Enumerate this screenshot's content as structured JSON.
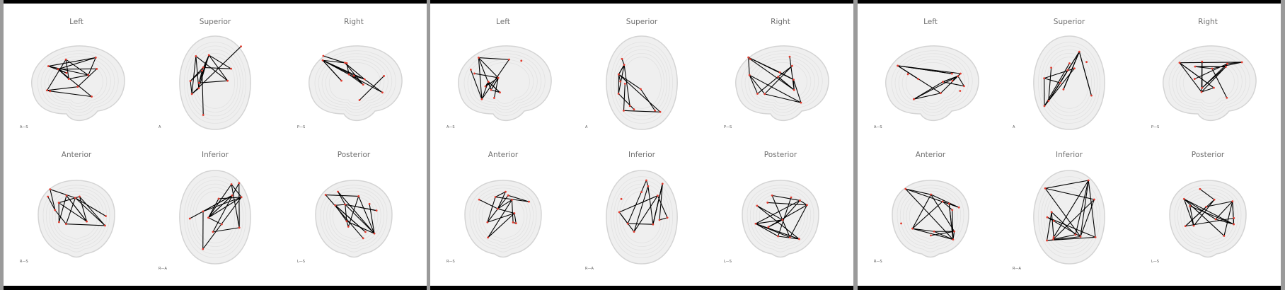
{
  "views": [
    {
      "key": "left",
      "title": "Left",
      "shape": "side",
      "axis": "A—S"
    },
    {
      "key": "superior",
      "title": "Superior",
      "shape": "top",
      "axis": "A"
    },
    {
      "key": "right",
      "title": "Right",
      "shape": "side",
      "axis": "P—S"
    },
    {
      "key": "anterior",
      "title": "Anterior",
      "shape": "front",
      "axis": "R—S"
    },
    {
      "key": "inferior",
      "title": "Inferior",
      "shape": "top",
      "axis": "R—A"
    },
    {
      "key": "posterior",
      "title": "Posterior",
      "shape": "front",
      "axis": "L—S"
    }
  ],
  "panels": [
    {
      "id": "panel-1",
      "seed": 11
    },
    {
      "id": "panel-2",
      "seed": 37
    },
    {
      "id": "panel-3",
      "seed": 73
    }
  ],
  "colors": {
    "brain_fill": "#efefef",
    "brain_stroke": "#d4d4d4",
    "edge": "#000000",
    "node": "#e23b2e"
  }
}
